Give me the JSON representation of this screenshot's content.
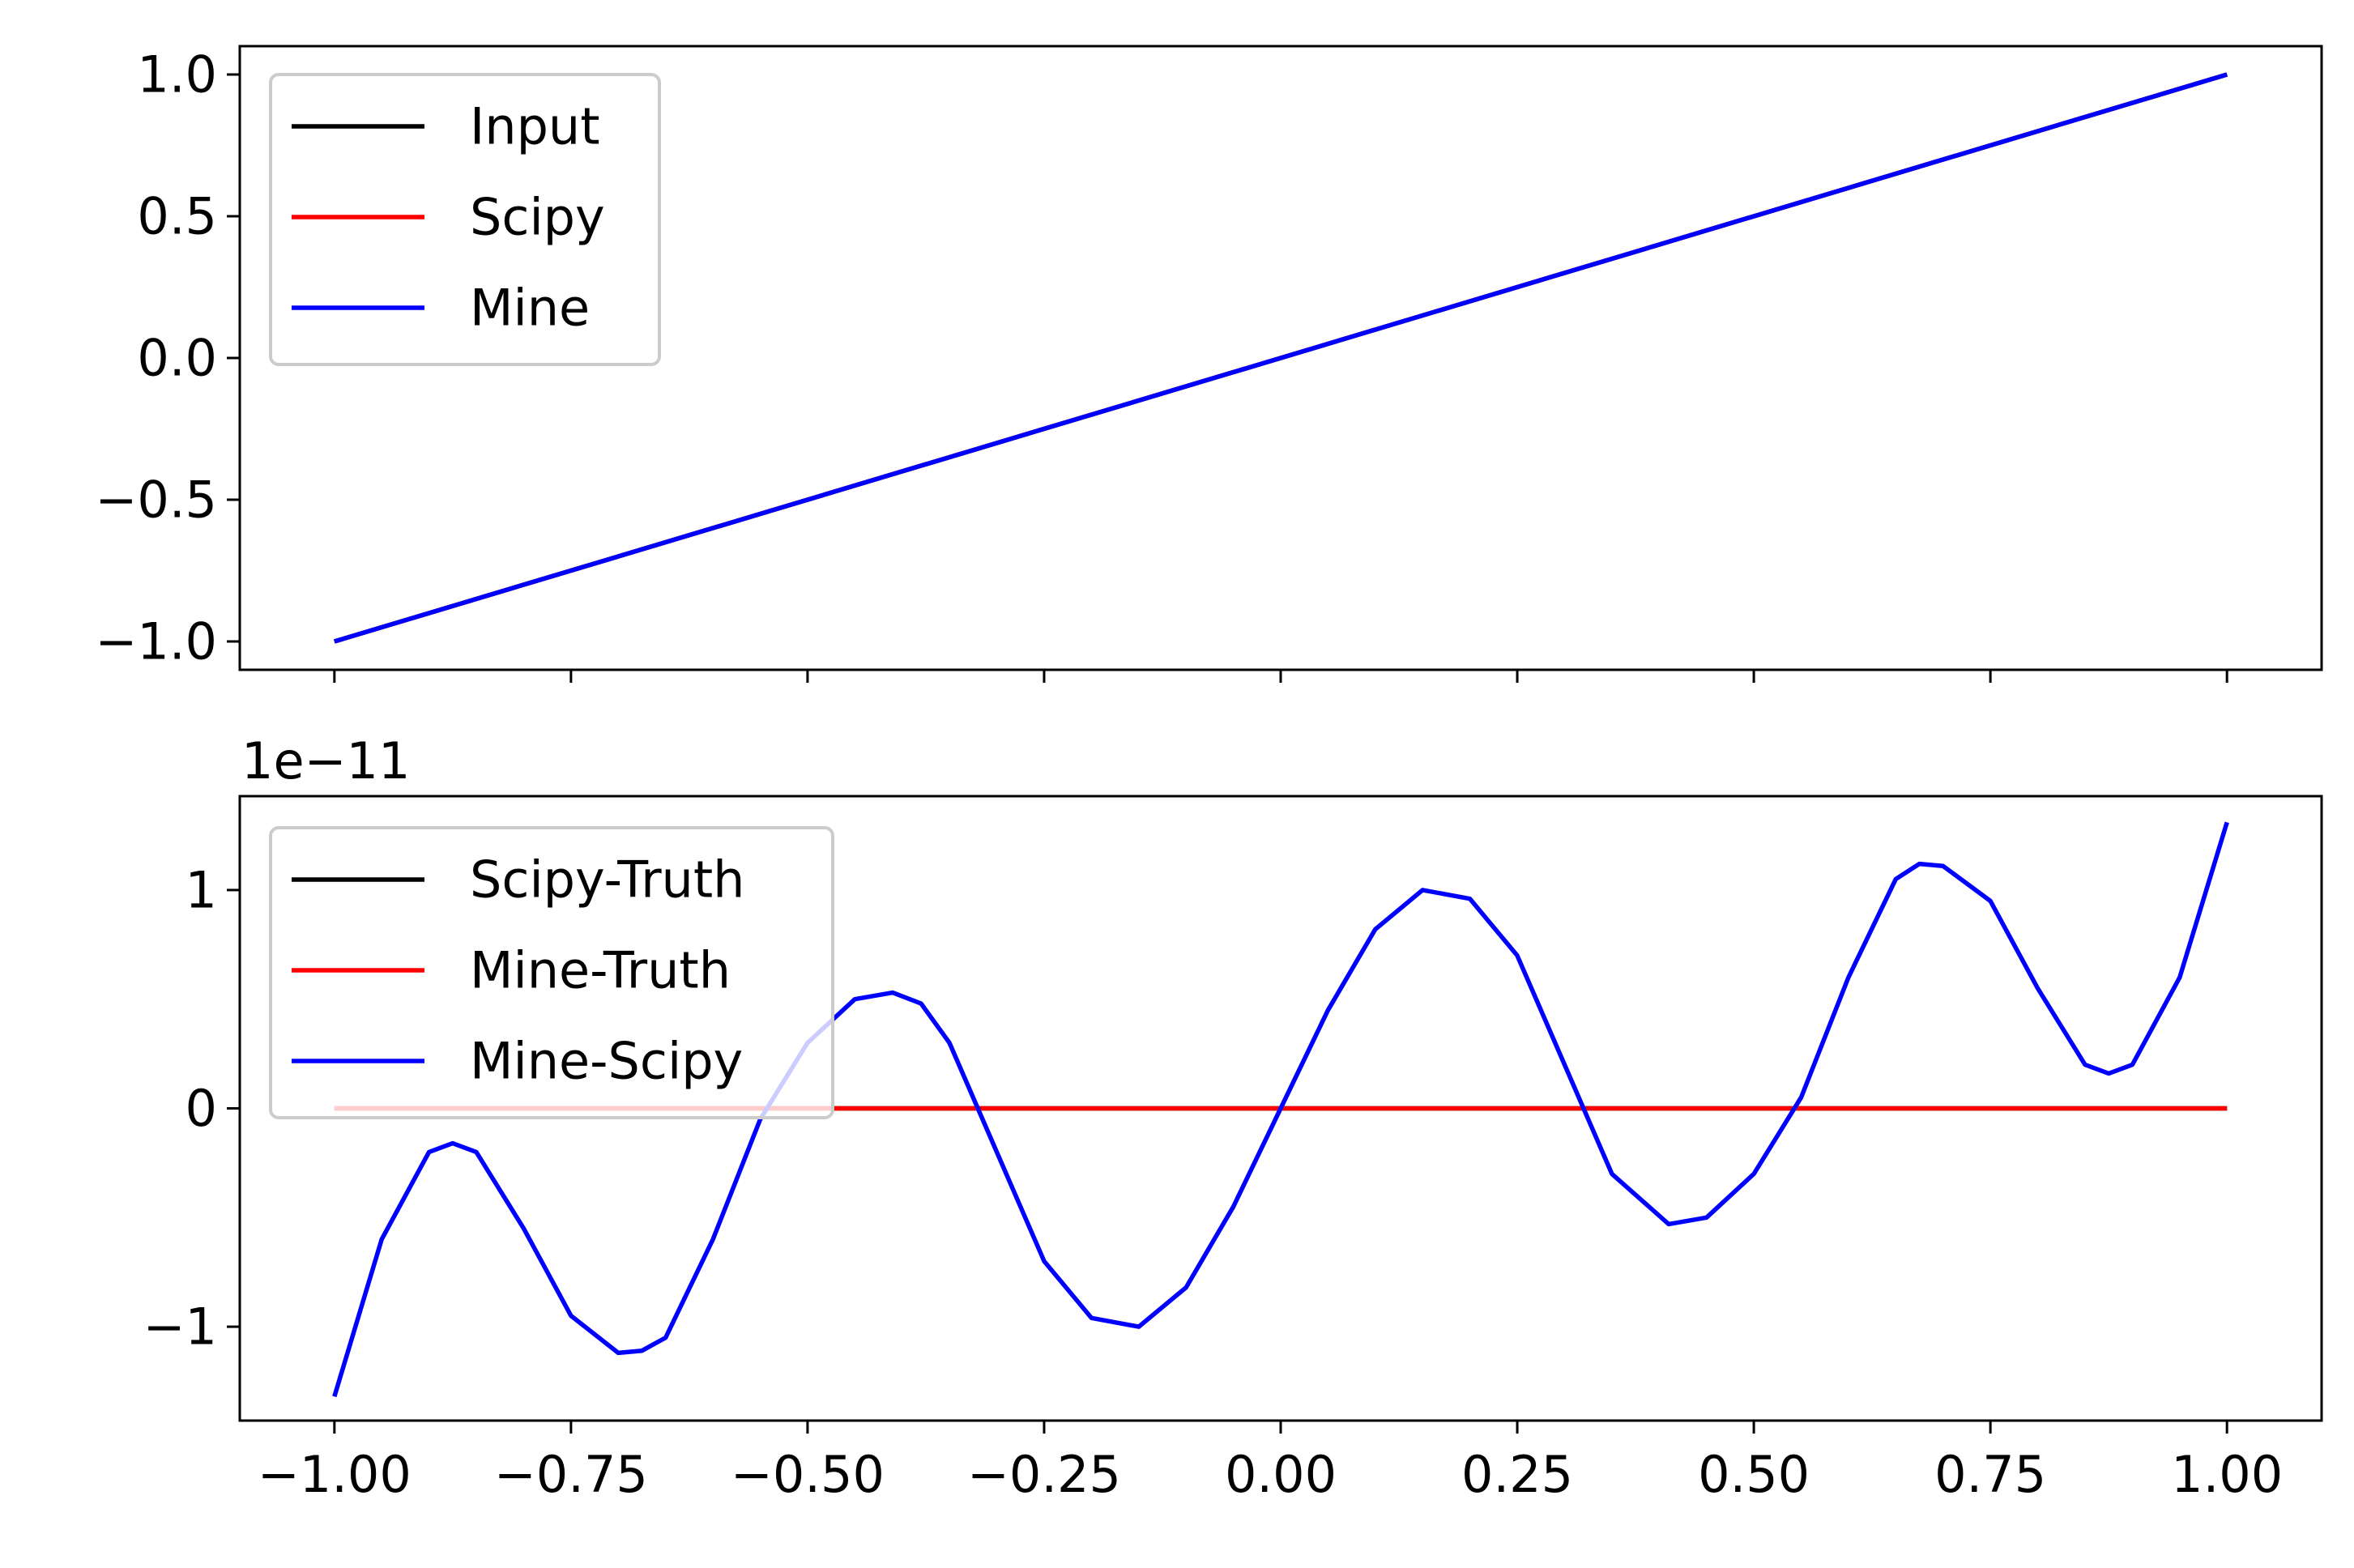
{
  "colors": {
    "black": "#000000",
    "red": "#ff0000",
    "blue": "#0000ff",
    "legend_edge": "#cccccc"
  },
  "chart_data": [
    {
      "type": "line",
      "title": "",
      "xlabel": "",
      "ylabel": "",
      "xlim": [
        -1.1,
        1.1
      ],
      "ylim": [
        -1.1,
        1.1
      ],
      "yticks": [
        1.0,
        0.5,
        0.0,
        -0.5,
        -1.0
      ],
      "ytick_labels": [
        "1.0",
        "0.5",
        "0.0",
        "−0.5",
        "−1.0"
      ],
      "xticks": [
        -1.0,
        -0.75,
        -0.5,
        -0.25,
        0.0,
        0.25,
        0.5,
        0.75,
        1.0
      ],
      "show_xtick_labels": false,
      "legend_position": "upper-left",
      "series": [
        {
          "name": "Input",
          "color": "#000000",
          "x": [
            -1.0,
            1.0
          ],
          "y": [
            -1.0,
            1.0
          ]
        },
        {
          "name": "Scipy",
          "color": "#ff0000",
          "x": [
            -1.0,
            1.0
          ],
          "y": [
            -1.0,
            1.0
          ]
        },
        {
          "name": "Mine",
          "color": "#0000ff",
          "x": [
            -1.0,
            1.0
          ],
          "y": [
            -1.0,
            1.0
          ]
        }
      ]
    },
    {
      "type": "line",
      "title": "",
      "xlabel": "",
      "ylabel": "",
      "offset_text": "1e−11",
      "xlim": [
        -1.1,
        1.1
      ],
      "ylim": [
        -1.43,
        1.43
      ],
      "yticks": [
        1,
        0,
        -1
      ],
      "ytick_labels": [
        "1",
        "0",
        "−1"
      ],
      "xticks": [
        -1.0,
        -0.75,
        -0.5,
        -0.25,
        0.0,
        0.25,
        0.5,
        0.75,
        1.0
      ],
      "xtick_labels": [
        "−1.00",
        "−0.75",
        "−0.50",
        "−0.25",
        "0.00",
        "0.25",
        "0.50",
        "0.75",
        "1.00"
      ],
      "show_xtick_labels": true,
      "legend_position": "upper-left",
      "series": [
        {
          "name": "Scipy-Truth",
          "color": "#000000",
          "x": [
            -1.0,
            1.0
          ],
          "y": [
            0,
            0
          ]
        },
        {
          "name": "Mine-Truth",
          "color": "#ff0000",
          "x": [
            -1.0,
            1.0
          ],
          "y": [
            0,
            0
          ]
        },
        {
          "name": "Mine-Scipy",
          "color": "#0000ff",
          "x": [
            -1.0,
            -0.95,
            -0.9,
            -0.875,
            -0.85,
            -0.8,
            -0.75,
            -0.7,
            -0.675,
            -0.65,
            -0.6,
            -0.55,
            -0.5,
            -0.45,
            -0.41,
            -0.38,
            -0.35,
            -0.3,
            -0.25,
            -0.2,
            -0.15,
            -0.1,
            -0.05,
            0.0,
            0.05,
            0.1,
            0.15,
            0.2,
            0.25,
            0.3,
            0.35,
            0.41,
            0.45,
            0.5,
            0.55,
            0.6,
            0.65,
            0.675,
            0.7,
            0.75,
            0.8,
            0.85,
            0.875,
            0.9,
            0.95,
            1.0
          ],
          "y": [
            -1.32,
            -0.6,
            -0.2,
            -0.16,
            -0.2,
            -0.55,
            -0.95,
            -1.12,
            -1.11,
            -1.05,
            -0.6,
            -0.05,
            0.3,
            0.5,
            0.53,
            0.48,
            0.3,
            -0.2,
            -0.7,
            -0.96,
            -1.0,
            -0.82,
            -0.45,
            0.0,
            0.45,
            0.82,
            1.0,
            0.96,
            0.7,
            0.2,
            -0.3,
            -0.53,
            -0.5,
            -0.3,
            0.05,
            0.6,
            1.05,
            1.12,
            1.11,
            0.95,
            0.55,
            0.2,
            0.16,
            0.2,
            0.6,
            1.31
          ]
        }
      ]
    }
  ]
}
